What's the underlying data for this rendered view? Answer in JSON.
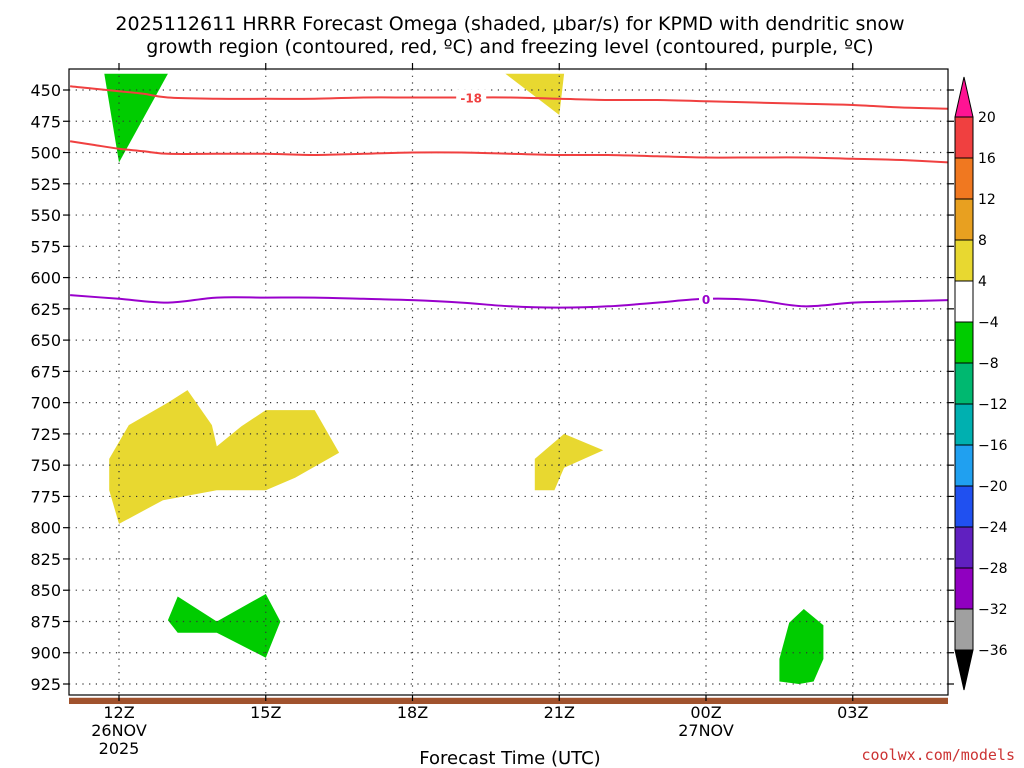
{
  "title_line1": "2025112611 HRRR Forecast Omega (shaded, μbar/s) for KPMD with dendritic snow",
  "title_line2": "growth region (contoured, red, ºC) and freezing level (contoured, purple, ºC)",
  "credit": "coolwx.com/models",
  "chart_data": {
    "type": "time-height contour",
    "xlabel": "Forecast Time (UTC)",
    "y_reversed": true,
    "y_ticks": [
      450,
      475,
      500,
      525,
      550,
      575,
      600,
      625,
      650,
      675,
      700,
      725,
      750,
      775,
      800,
      825,
      850,
      875,
      900,
      925
    ],
    "x_ticks": [
      {
        "hour": 12,
        "lines": [
          "12Z",
          "26NOV",
          "2025"
        ]
      },
      {
        "hour": 15,
        "lines": [
          "15Z"
        ]
      },
      {
        "hour": 18,
        "lines": [
          "18Z"
        ]
      },
      {
        "hour": 21,
        "lines": [
          "21Z"
        ]
      },
      {
        "hour": 24,
        "lines": [
          "00Z",
          "27NOV"
        ]
      },
      {
        "hour": 27,
        "lines": [
          "03Z"
        ]
      }
    ],
    "grid": true,
    "omega_colorbar": {
      "ticks": [
        20,
        16,
        12,
        8,
        4,
        -4,
        -8,
        -12,
        -16,
        -20,
        -24,
        -28,
        -32,
        -36
      ],
      "colors": [
        "#ff1493",
        "#f04040",
        "#f07820",
        "#e8a020",
        "#e8d830",
        "#ffffff",
        "#00cc00",
        "#00b870",
        "#00b0b0",
        "#20a0f0",
        "#2050f0",
        "#6020c0",
        "#9000c0",
        "#a0a0a0",
        "#000000"
      ]
    },
    "dendritic_contours": {
      "color": "#f04040",
      "label": "-18",
      "lines": [
        {
          "t": [
            11,
            11.5,
            12,
            12.5,
            13,
            14,
            15,
            16,
            17,
            18,
            19,
            20,
            21,
            22,
            23,
            24,
            25,
            26,
            27,
            28,
            29
          ],
          "p": [
            447,
            449,
            451,
            453,
            456,
            457,
            457,
            457,
            456,
            456,
            456,
            456,
            457,
            458,
            458,
            459,
            460,
            461,
            462,
            464,
            465
          ]
        },
        {
          "t": [
            11,
            11.5,
            12,
            12.5,
            13,
            14,
            15,
            16,
            17,
            18,
            19,
            20,
            21,
            22,
            23,
            24,
            25,
            26,
            27,
            28,
            29
          ],
          "p": [
            491,
            494,
            497,
            499,
            501,
            501,
            501,
            502,
            501,
            500,
            500,
            501,
            502,
            502,
            503,
            504,
            504,
            504,
            505,
            506,
            508
          ]
        }
      ]
    },
    "freezing_level": {
      "color": "#9900cc",
      "label": "0",
      "t": [
        11,
        12,
        13,
        14,
        15,
        16,
        17,
        18,
        19,
        20,
        21,
        22,
        23,
        24,
        25,
        26,
        27,
        28,
        29
      ],
      "p": [
        614,
        617,
        620,
        616,
        616,
        616,
        617,
        618,
        620,
        623,
        624,
        623,
        620,
        617,
        618,
        623,
        620,
        619,
        618
      ]
    },
    "omega_regions": [
      {
        "color": "#00cc00",
        "t": [
          11.7,
          13.0,
          12.0
        ],
        "p": [
          437,
          437,
          508
        ]
      },
      {
        "color": "#e8d830",
        "t": [
          19.9,
          21.1,
          21.0
        ],
        "p": [
          437,
          437,
          470
        ]
      },
      {
        "color": "#e8d830",
        "t": [
          11.8,
          12.2,
          13.0,
          13.4,
          13.9,
          14.0,
          14.5,
          15.0,
          16.0,
          16.5,
          15.6,
          15.0,
          14.0,
          12.9,
          12.0,
          11.8
        ],
        "p": [
          745,
          718,
          700,
          690,
          718,
          735,
          719,
          706,
          706,
          740,
          760,
          770,
          770,
          778,
          797,
          770
        ]
      },
      {
        "color": "#e8d830",
        "t": [
          20.5,
          21.1,
          21.9,
          21.1,
          20.9,
          20.5
        ],
        "p": [
          745,
          725,
          738,
          752,
          770,
          770
        ]
      },
      {
        "color": "#00cc00",
        "t": [
          13.0,
          13.2,
          14.0,
          15.0,
          15.3,
          15.0,
          14.0,
          13.2
        ],
        "p": [
          874,
          855,
          875,
          853,
          875,
          904,
          884,
          884
        ]
      },
      {
        "color": "#00cc00",
        "t": [
          25.5,
          25.7,
          26.0,
          26.4,
          26.4,
          26.2,
          25.9,
          25.5
        ],
        "p": [
          905,
          876,
          865,
          878,
          905,
          923,
          925,
          923
        ]
      }
    ],
    "surface_band": {
      "color": "#a0522d",
      "p_top": 936,
      "p_bottom": 941
    }
  }
}
